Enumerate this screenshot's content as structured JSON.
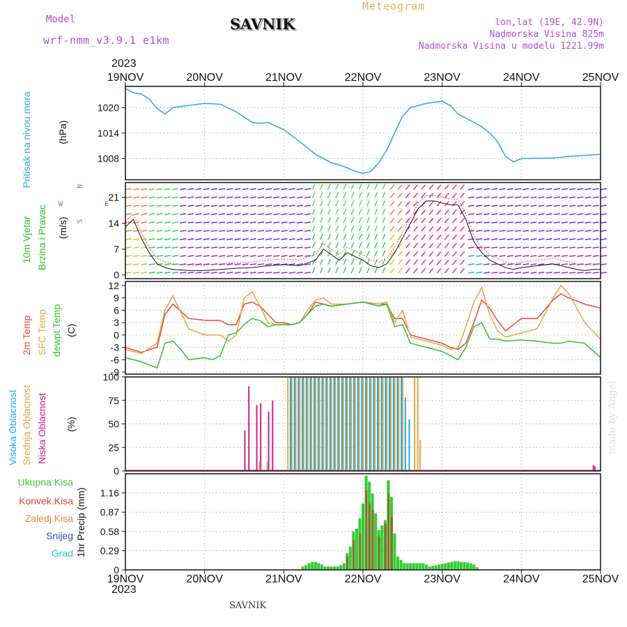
{
  "header": {
    "model_label": "Model",
    "model_name": "wrf-nmm_v3.9.1  e1km",
    "station": "SAVNIK",
    "title": "Meteogram",
    "lonlat": "lon,lat (19E, 42.9N)",
    "elevation": "Nadmorska Visina 825m",
    "model_elevation": "Nadmorska Visina u modelu 1221.99m",
    "year": "2023"
  },
  "footer": {
    "year": "2023",
    "station": "SAVNIK",
    "watermark": "made by Angel"
  },
  "colors": {
    "pressure": "#2aa6e8",
    "temp2m": "#e8483a",
    "sfc": "#e0a640",
    "dewpt": "#2ec02e",
    "low_cloud": "#d0208a",
    "mid_cloud": "#e0a640",
    "high_cloud": "#22a8e6",
    "wind_text_green": "#2ec02e",
    "wind_text_purple": "#b04fd6",
    "total_precip": "#33cc33",
    "conv_precip": "#e83c3c",
    "strat_precip": "#ef7f3a",
    "snow": "#4444dd",
    "hail": "#22cccc"
  },
  "chart_data": [
    {
      "type": "line",
      "panel": "pressure",
      "ylabel": [
        "Pritisak na nivou mora",
        "(hPa)"
      ],
      "x_ticks": [
        "19NOV",
        "20NOV",
        "21NOV",
        "22NOV",
        "23NOV",
        "24NOV",
        "25NOV"
      ],
      "ylim": [
        1003,
        1025
      ],
      "y_ticks": [
        1008,
        1014,
        1020
      ],
      "grid": true,
      "series": [
        {
          "x": [
            0,
            0.1,
            0.2,
            0.3,
            0.4,
            0.5,
            0.6,
            0.8,
            1.0,
            1.2,
            1.4,
            1.6,
            1.7,
            1.8,
            2.0,
            2.2,
            2.3,
            2.4,
            2.5,
            2.6,
            2.7,
            2.8,
            2.9,
            3.0,
            3.1,
            3.15,
            3.2,
            3.3,
            3.4,
            3.5,
            3.6,
            3.8,
            4.0,
            4.1,
            4.2,
            4.3,
            4.4,
            4.5,
            4.6,
            4.7,
            4.8,
            4.9,
            5.0,
            5.4,
            5.5,
            5.6,
            5.8,
            6.0
          ],
          "values": [
            1024.5,
            1023.5,
            1023.2,
            1022,
            1019.8,
            1018.5,
            1020,
            1020.5,
            1021,
            1020.8,
            1019,
            1016.5,
            1016.3,
            1016.5,
            1014.8,
            1012,
            1010.5,
            1009,
            1008,
            1007,
            1006.5,
            1005.8,
            1005,
            1004.5,
            1005,
            1006,
            1007,
            1010,
            1014,
            1018,
            1020,
            1021,
            1021.5,
            1020.5,
            1018.5,
            1017.5,
            1016.5,
            1015.5,
            1014,
            1012,
            1008.5,
            1007.2,
            1008,
            1008.1,
            1008.3,
            1008.5,
            1008.7,
            1009
          ]
        }
      ]
    },
    {
      "type": "line",
      "panel": "wind",
      "ylabel": [
        "10m Vjetar",
        "Brzina i Pravac",
        "(m/s)"
      ],
      "compass": {
        "n": "N",
        "s": "S",
        "e": "E",
        "w": "W"
      },
      "ylim": [
        -1,
        25
      ],
      "y_ticks": [
        0,
        7,
        14,
        21
      ],
      "series": [
        {
          "name": "wind speed",
          "x": [
            0,
            0.1,
            0.2,
            0.3,
            0.4,
            0.5,
            0.6,
            0.8,
            1.0,
            1.2,
            1.4,
            1.6,
            1.8,
            2.0,
            2.2,
            2.4,
            2.5,
            2.6,
            2.7,
            2.8,
            2.9,
            3.0,
            3.1,
            3.2,
            3.3,
            3.4,
            3.5,
            3.6,
            3.7,
            3.8,
            3.9,
            4.0,
            4.1,
            4.2,
            4.3,
            4.4,
            4.5,
            4.6,
            4.7,
            4.8,
            4.9,
            5.0,
            5.2,
            5.4,
            5.5,
            5.6,
            5.7,
            5.8,
            5.9,
            6.0
          ],
          "values": [
            13,
            15,
            10,
            6,
            3,
            2,
            1.5,
            1.2,
            1.2,
            1.5,
            1.8,
            2,
            2.5,
            2.8,
            2.5,
            4,
            7,
            5.5,
            4,
            6,
            5,
            4,
            2.5,
            2,
            3,
            6,
            10,
            14,
            18,
            20,
            20,
            19.5,
            19,
            19,
            15,
            9,
            6,
            4,
            3,
            2,
            1.5,
            2,
            2.5,
            3,
            2.5,
            2,
            1.5,
            1.2,
            1.5,
            1.5
          ]
        }
      ]
    },
    {
      "type": "line",
      "panel": "temperature",
      "ylabel": [
        "2m Temp",
        "SFC Temp",
        "dewpt Temp",
        "(C)"
      ],
      "ylim": [
        -9.5,
        13
      ],
      "y_ticks": [
        -9,
        -6,
        -3,
        0,
        3,
        6,
        9,
        12
      ],
      "series": [
        {
          "name": "2m Temp",
          "x": [
            0,
            0.2,
            0.4,
            0.5,
            0.6,
            0.8,
            1.0,
            1.2,
            1.3,
            1.4,
            1.5,
            1.6,
            1.7,
            1.8,
            1.9,
            2.0,
            2.1,
            2.2,
            2.3,
            2.4,
            2.5,
            2.6,
            2.8,
            3.0,
            3.2,
            3.3,
            3.4,
            3.5,
            3.6,
            3.8,
            4.0,
            4.1,
            4.2,
            4.3,
            4.4,
            4.5,
            4.6,
            4.7,
            4.8,
            5.0,
            5.2,
            5.4,
            5.5,
            5.6,
            5.8,
            6.0
          ],
          "values": [
            -3,
            -4.2,
            -3,
            5,
            7.5,
            4,
            3.6,
            3.5,
            2.5,
            2.5,
            7.5,
            8,
            7,
            5,
            3,
            3,
            2.5,
            3,
            5,
            8,
            7.5,
            7,
            7.5,
            8,
            7.5,
            7.5,
            4,
            4,
            0,
            -1,
            -2,
            -3,
            -3.5,
            -2,
            3,
            8.5,
            6.5,
            3.5,
            1,
            4,
            4,
            8.5,
            10,
            9,
            7.5,
            6.5
          ]
        },
        {
          "name": "SFC Temp",
          "x": [
            0,
            0.2,
            0.4,
            0.5,
            0.6,
            0.8,
            1.0,
            1.2,
            1.3,
            1.4,
            1.5,
            1.6,
            1.7,
            1.8,
            1.9,
            2.0,
            2.1,
            2.2,
            2.3,
            2.4,
            2.5,
            2.6,
            2.8,
            3.0,
            3.2,
            3.3,
            3.4,
            3.5,
            3.6,
            3.8,
            4.0,
            4.1,
            4.2,
            4.3,
            4.4,
            4.5,
            4.6,
            4.7,
            4.8,
            5.0,
            5.2,
            5.4,
            5.5,
            5.6,
            5.8,
            6.0
          ],
          "values": [
            -3.5,
            -4.5,
            -2,
            6,
            9.5,
            1.5,
            0,
            0,
            -1.5,
            0,
            9,
            10.5,
            7,
            3,
            2.5,
            2.5,
            2.5,
            3,
            6,
            8.5,
            9,
            7.5,
            7.5,
            8,
            7.5,
            8,
            3,
            6,
            -0.5,
            -1.5,
            -2.5,
            -3.5,
            -3.2,
            2,
            8,
            11.5,
            5,
            1,
            -0.5,
            0.5,
            1.5,
            9,
            12,
            10,
            3,
            -1
          ]
        },
        {
          "name": "dewpt Temp",
          "x": [
            0,
            0.2,
            0.4,
            0.5,
            0.6,
            0.7,
            0.8,
            1.0,
            1.1,
            1.2,
            1.3,
            1.4,
            1.5,
            1.6,
            1.7,
            1.8,
            1.9,
            2.0,
            2.1,
            2.2,
            2.3,
            2.4,
            2.5,
            2.6,
            2.8,
            3.0,
            3.2,
            3.3,
            3.4,
            3.5,
            3.6,
            3.8,
            4.0,
            4.1,
            4.2,
            4.3,
            4.4,
            4.5,
            4.6,
            4.7,
            4.8,
            5.0,
            5.2,
            5.4,
            5.5,
            5.6,
            5.8,
            6.0
          ],
          "values": [
            -5.5,
            -6.5,
            -8,
            -2,
            -1.5,
            -3.5,
            -6,
            -5.5,
            -6,
            -5,
            0,
            0.5,
            2.5,
            4,
            3.5,
            2,
            2.5,
            2.5,
            2.5,
            3,
            5,
            7,
            7.5,
            7,
            7.5,
            8,
            7,
            7.5,
            2,
            2.5,
            -2,
            -3,
            -4,
            -5,
            -6,
            -3,
            2,
            3,
            -1,
            -1,
            -1.5,
            -1.2,
            -1.5,
            -2,
            -2,
            -1.5,
            -2,
            -5.5
          ]
        }
      ]
    },
    {
      "type": "bar",
      "panel": "cloud",
      "ylabel": [
        "Visoka Oblacnost",
        "Srednja Oblacnost",
        "Niska Oblacnost",
        "(%)"
      ],
      "ylim": [
        0,
        100
      ],
      "y_ticks": [
        0,
        25,
        50,
        75,
        100
      ],
      "series": [
        {
          "name": "Niska Oblacnost",
          "x": [
            1.5,
            1.55,
            1.65,
            1.7,
            1.8,
            1.85,
            5.9,
            5.92
          ],
          "values": [
            43,
            90,
            70,
            72,
            63,
            75,
            6,
            5
          ]
        },
        {
          "name": "Srednja Oblacnost",
          "x": [
            1.67,
            1.77,
            2.03,
            2.08,
            2.13,
            2.18,
            2.23,
            2.28,
            2.33,
            2.38,
            2.43,
            2.48,
            2.53,
            2.58,
            2.63,
            2.68,
            2.73,
            2.78,
            2.83,
            2.88,
            2.93,
            2.98,
            3.03,
            3.08,
            3.13,
            3.18,
            3.23,
            3.28,
            3.33,
            3.38,
            3.43,
            3.48,
            3.63,
            3.67,
            3.7
          ],
          "values": [
            10,
            10,
            100,
            100,
            100,
            100,
            100,
            100,
            100,
            100,
            100,
            100,
            100,
            100,
            100,
            100,
            100,
            100,
            100,
            100,
            100,
            100,
            100,
            100,
            100,
            100,
            100,
            100,
            100,
            100,
            100,
            100,
            100,
            100,
            33
          ]
        },
        {
          "name": "Visoka Oblacnost",
          "x": [
            2.05,
            2.1,
            2.15,
            2.2,
            2.25,
            2.3,
            2.35,
            2.4,
            2.45,
            2.5,
            2.55,
            2.6,
            2.65,
            2.7,
            2.75,
            2.8,
            2.85,
            2.9,
            2.95,
            3.0,
            3.05,
            3.1,
            3.15,
            3.2,
            3.25,
            3.3,
            3.35,
            3.4,
            3.45,
            3.5,
            3.55
          ],
          "values": [
            100,
            100,
            100,
            100,
            100,
            100,
            100,
            100,
            100,
            100,
            100,
            100,
            100,
            100,
            100,
            100,
            100,
            100,
            100,
            100,
            100,
            100,
            100,
            100,
            100,
            100,
            100,
            100,
            100,
            78,
            55
          ]
        }
      ]
    },
    {
      "type": "bar",
      "panel": "precip",
      "ylabel": [
        "1hr Precip (mm)"
      ],
      "legend": [
        "Ukupna Kisa",
        "Konvek.Kisa",
        "Zaledj.Kisa",
        "Snijeg",
        "Grad"
      ],
      "ylim": [
        0,
        1.45
      ],
      "y_ticks": [
        0,
        0.29,
        0.58,
        0.87,
        1.16
      ],
      "y_tick_labels": [
        "0",
        "0.29",
        "0.58",
        "0.87",
        "1.16"
      ],
      "series": [
        {
          "name": "Ukupna Kisa",
          "x": [
            2.24,
            2.28,
            2.32,
            2.36,
            2.4,
            2.44,
            2.48,
            2.52,
            2.56,
            2.6,
            2.64,
            2.68,
            2.72,
            2.76,
            2.8,
            2.84,
            2.88,
            2.92,
            2.96,
            3.0,
            3.04,
            3.08,
            3.12,
            3.16,
            3.2,
            3.24,
            3.28,
            3.32,
            3.36,
            3.4,
            3.44,
            3.48,
            3.52,
            3.56,
            3.6,
            3.64,
            3.68,
            3.72,
            3.76,
            3.8,
            3.84,
            3.88,
            3.92,
            3.96,
            4.0,
            4.04,
            4.08,
            4.12,
            4.16,
            4.2,
            4.24,
            4.28,
            4.32,
            4.36,
            4.4,
            4.44
          ],
          "values": [
            0.05,
            0.07,
            0.1,
            0.12,
            0.12,
            0.1,
            0.08,
            0.05,
            0.05,
            0.05,
            0.05,
            0.05,
            0.07,
            0.1,
            0.25,
            0.35,
            0.58,
            0.62,
            0.78,
            1.0,
            1.42,
            1.33,
            1.15,
            0.85,
            0.6,
            0.67,
            0.75,
            1.35,
            1.1,
            0.55,
            0.2,
            0.15,
            0.1,
            0.1,
            0.1,
            0.1,
            0.1,
            0.1,
            0.1,
            0.08,
            0.05,
            0.06,
            0.07,
            0.08,
            0.09,
            0.1,
            0.11,
            0.12,
            0.13,
            0.13,
            0.12,
            0.12,
            0.11,
            0.1,
            0.08,
            0.04
          ]
        },
        {
          "name": "Konvek.Kisa",
          "x": [
            2.8,
            2.88,
            2.96,
            3.04,
            3.08,
            3.12,
            3.2,
            3.28,
            3.32,
            3.36
          ],
          "values": [
            0.2,
            0.45,
            0.55,
            1.2,
            1.0,
            0.9,
            0.5,
            0.7,
            1.15,
            0.8
          ]
        }
      ]
    }
  ]
}
